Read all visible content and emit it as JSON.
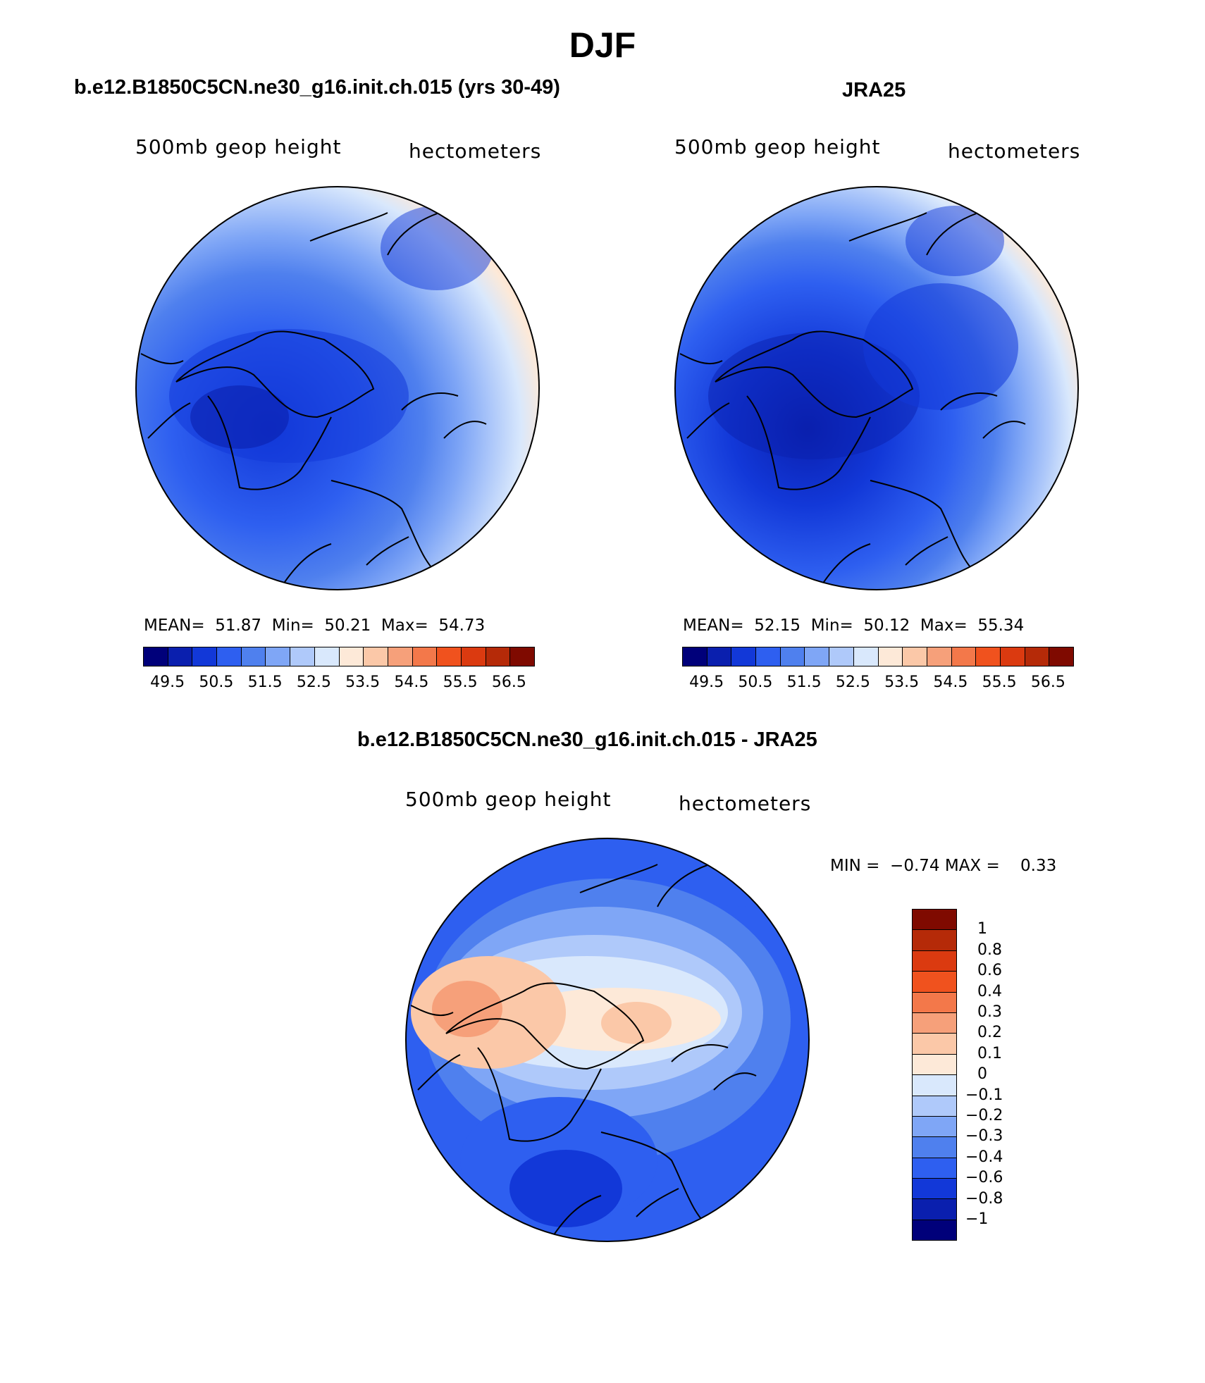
{
  "figure_title": "DJF",
  "panels": [
    {
      "title": "b.e12.B1850C5CN.ne30_g16.init.ch.015 (yrs 30-49)",
      "left_label": "500mb geop height",
      "right_label": "hectometers",
      "stats": {
        "mean_label": "MEAN=",
        "mean": "51.87",
        "min_label": "Min=",
        "min": "50.21",
        "max_label": "Max=",
        "max": "54.73"
      }
    },
    {
      "title": "JRA25",
      "left_label": "500mb geop height",
      "right_label": "hectometers",
      "stats": {
        "mean_label": "MEAN=",
        "mean": "52.15",
        "min_label": "Min=",
        "min": "50.12",
        "max_label": "Max=",
        "max": "55.34"
      }
    }
  ],
  "diff_panel": {
    "title": "b.e12.B1850C5CN.ne30_g16.init.ch.015 - JRA25",
    "left_label": "500mb geop height",
    "right_label": "hectometers",
    "min_label": "MIN =",
    "min": "−0.74",
    "max_label": "MAX =",
    "max": "0.33"
  },
  "abs_colorbar": {
    "ticks": [
      "49.5",
      "50.5",
      "51.5",
      "52.5",
      "53.5",
      "54.5",
      "55.5",
      "56.5"
    ],
    "colors": [
      "#00007a",
      "#0a1fae",
      "#1238d8",
      "#2e5ff0",
      "#4f80ee",
      "#7fa6f6",
      "#afc9fa",
      "#d9e8fc",
      "#fde9d8",
      "#fbc8a8",
      "#f6a07a",
      "#f3784a",
      "#f0521e",
      "#db3a10",
      "#b52a08",
      "#7f0a00"
    ]
  },
  "diff_colorbar": {
    "ticks": [
      "1",
      "0.8",
      "0.6",
      "0.4",
      "0.3",
      "0.2",
      "0.1",
      "0",
      "−0.1",
      "−0.2",
      "−0.3",
      "−0.4",
      "−0.6",
      "−0.8",
      "−1"
    ],
    "colors": [
      "#7f0a00",
      "#b52a08",
      "#db3a10",
      "#f0521e",
      "#f3784a",
      "#f6a07a",
      "#fbc8a8",
      "#fde9d8",
      "#d9e8fc",
      "#afc9fa",
      "#7fa6f6",
      "#4f80ee",
      "#2e5ff0",
      "#1238d8",
      "#0a1fae",
      "#00007a"
    ]
  }
}
